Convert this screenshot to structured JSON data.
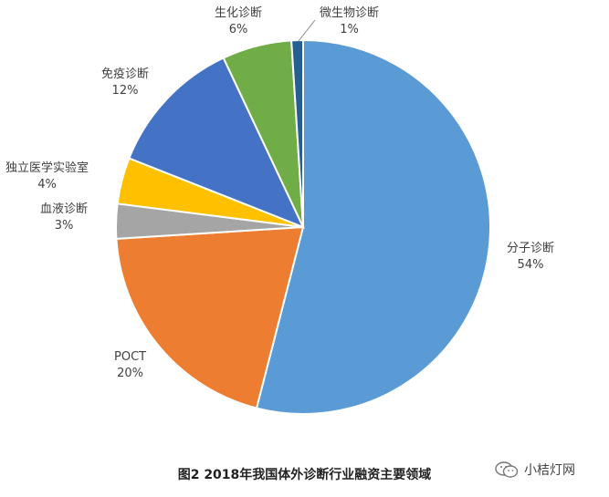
{
  "chart_data": {
    "type": "pie",
    "slices": [
      {
        "name": "分子诊断",
        "percent_label": "54%",
        "value": 54,
        "color": "#5b9bd5"
      },
      {
        "name": "POCT",
        "percent_label": "20%",
        "value": 20,
        "color": "#ed7d31"
      },
      {
        "name": "血液诊断",
        "percent_label": "3%",
        "value": 3,
        "color": "#a5a5a5"
      },
      {
        "name": "独立医学实验室",
        "percent_label": "4%",
        "value": 4,
        "color": "#ffc000"
      },
      {
        "name": "免疫诊断",
        "percent_label": "12%",
        "value": 12,
        "color": "#4472c4"
      },
      {
        "name": "生化诊断",
        "percent_label": "6%",
        "value": 6,
        "color": "#70ad47"
      },
      {
        "name": "微生物诊断",
        "percent_label": "1%",
        "value": 1,
        "color": "#255e91"
      }
    ]
  },
  "caption": "图2   2018年我国体外诊断行业融资主要领域",
  "watermark": {
    "text": "小桔灯网",
    "icon": "wechat-icon"
  }
}
